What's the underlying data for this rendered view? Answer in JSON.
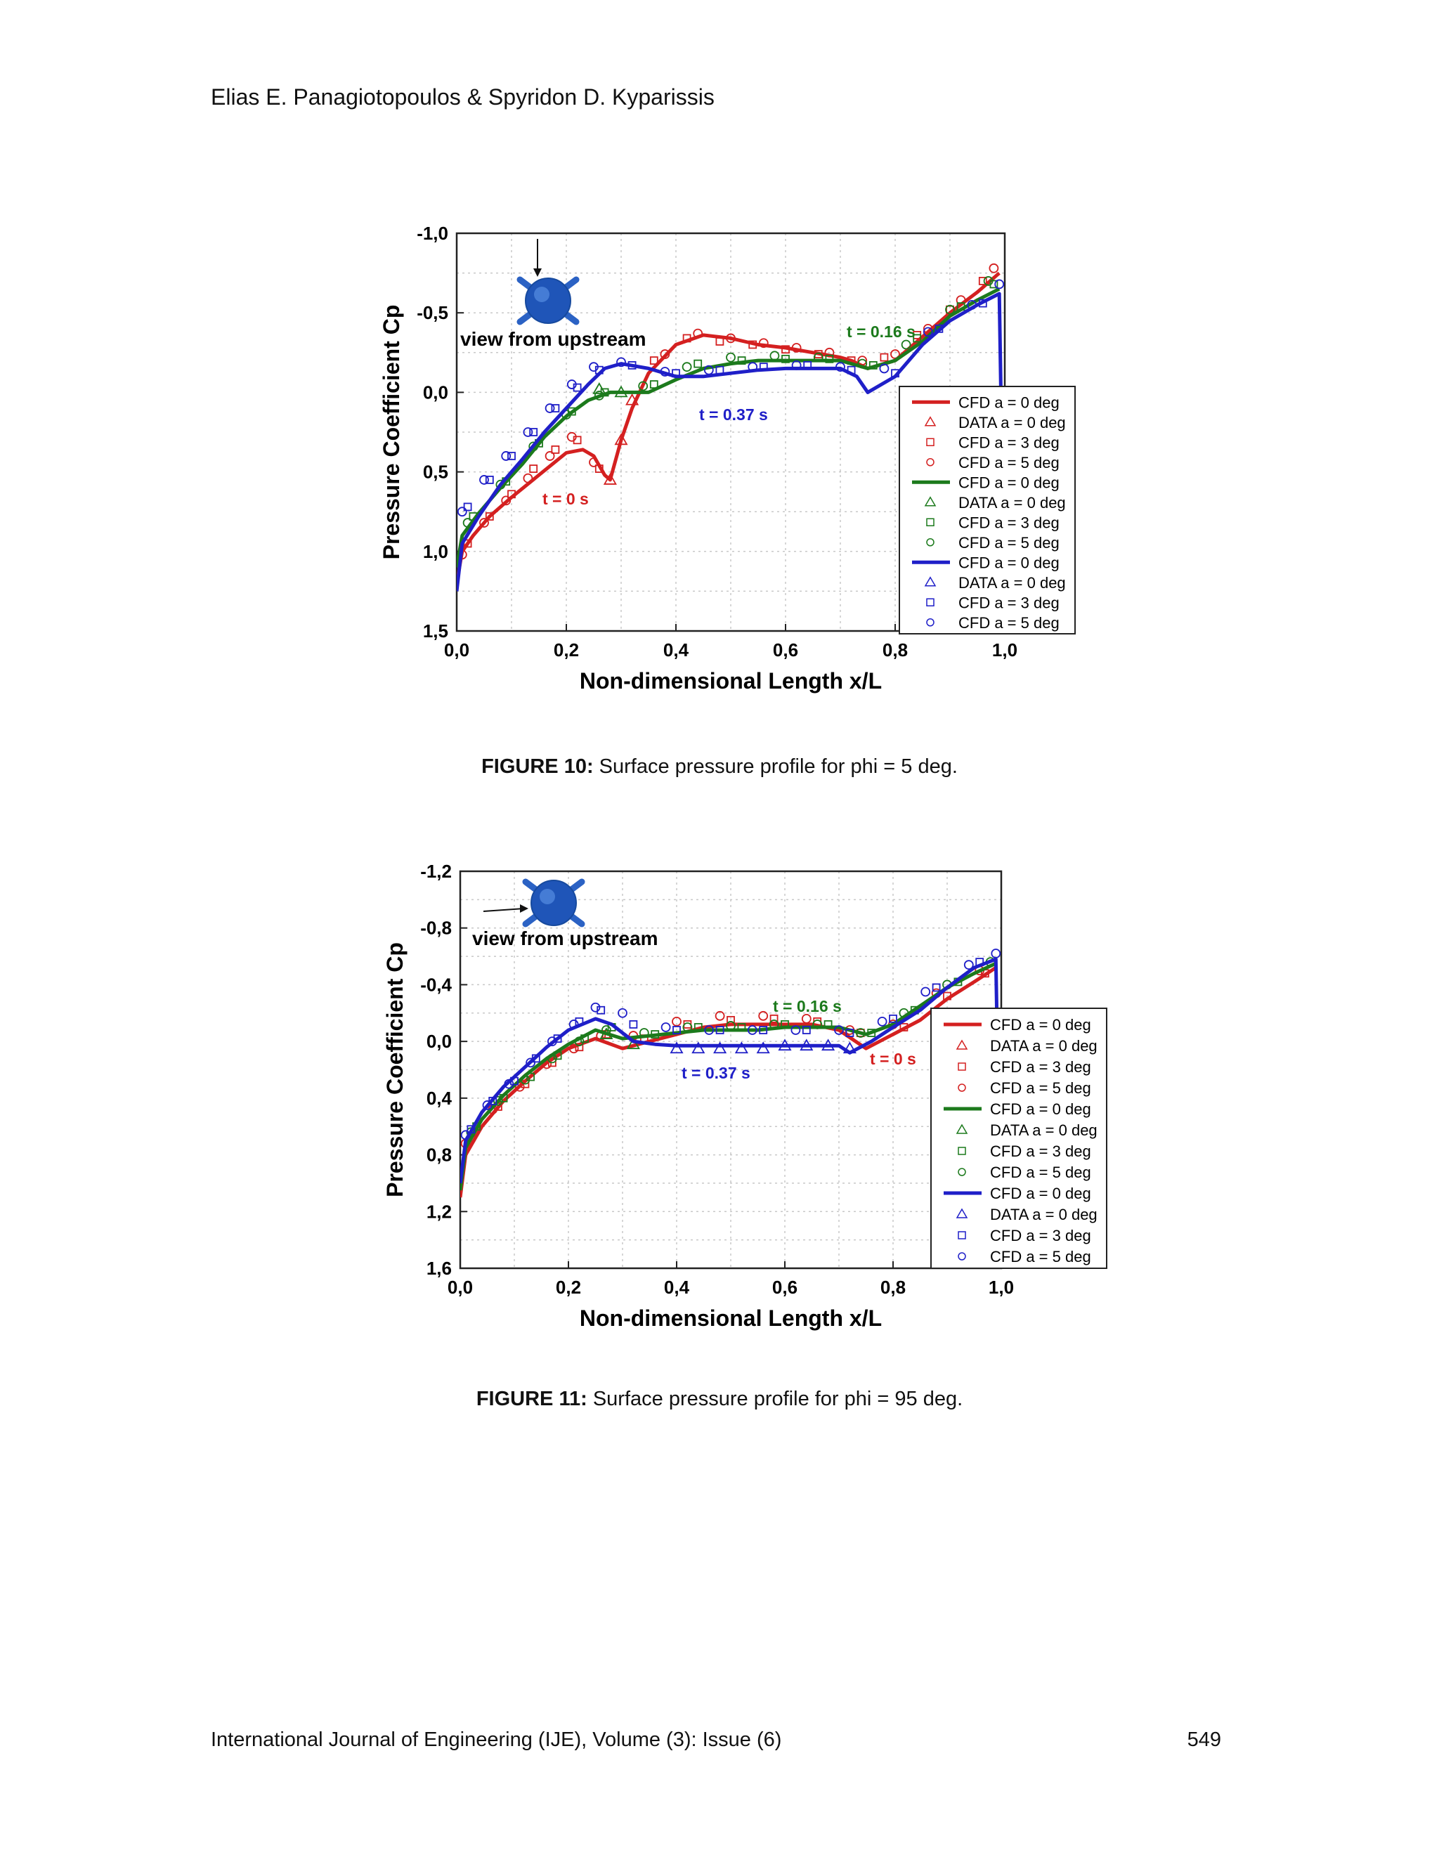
{
  "header": {
    "authors": "Elias E. Panagiotopoulos & Spyridon D. Kyparissis"
  },
  "footer": {
    "journal": "International Journal of Engineering (IJE), Volume (3): Issue (6)",
    "page_number": "549"
  },
  "colors": {
    "red": "#d42020",
    "green": "#1c7a1c",
    "blue": "#1f1fc8"
  },
  "figures": [
    {
      "caption_label": "FIGURE 10:",
      "caption_text": " Surface pressure profile for phi = 5 deg.",
      "inset_text": "view from upstream",
      "annotations": {
        "red": "t = 0 s",
        "green": "t = 0.16 s",
        "blue": "t = 0.37 s"
      }
    },
    {
      "caption_label": "FIGURE 11:",
      "caption_text": " Surface pressure profile for phi = 95 deg.",
      "inset_text": "view from upstream",
      "annotations": {
        "red": "t = 0 s",
        "green": "t = 0.16 s",
        "blue": "t = 0.37 s"
      }
    }
  ],
  "chart_data": [
    {
      "type": "line",
      "xlabel": "Non-dimensional Length x/L",
      "ylabel": "Pressure Coefficient Cp",
      "xlim": [
        0,
        1
      ],
      "ylim": [
        1.5,
        -1.1
      ],
      "y_inverted": true,
      "xticks": [
        "0,0",
        "0,2",
        "0,4",
        "0,6",
        "0,8",
        "1,0"
      ],
      "yticks": [
        "-1,0",
        "-0,5",
        "0,0",
        "0,5",
        "1,0",
        "1,5"
      ],
      "legend_position": "right",
      "series": [
        {
          "name": "CFD a = 0 deg",
          "color": "red",
          "marker": "line",
          "x": [
            0,
            0.01,
            0.03,
            0.06,
            0.1,
            0.15,
            0.2,
            0.23,
            0.25,
            0.27,
            0.28,
            0.3,
            0.32,
            0.35,
            0.4,
            0.45,
            0.5,
            0.55,
            0.6,
            0.65,
            0.7,
            0.72,
            0.75,
            0.8,
            0.85,
            0.9,
            0.95,
            0.99
          ],
          "y": [
            1.2,
            1.0,
            0.9,
            0.78,
            0.66,
            0.52,
            0.38,
            0.36,
            0.4,
            0.52,
            0.55,
            0.3,
            0.1,
            -0.12,
            -0.3,
            -0.36,
            -0.34,
            -0.3,
            -0.28,
            -0.25,
            -0.22,
            -0.2,
            -0.15,
            -0.2,
            -0.35,
            -0.5,
            -0.63,
            -0.75
          ]
        },
        {
          "name": "DATA a = 0 deg",
          "color": "red",
          "marker": "triangle",
          "x": [
            0.28,
            0.3,
            0.32
          ],
          "y": [
            0.55,
            0.3,
            0.05
          ]
        },
        {
          "name": "CFD a = 3 deg",
          "color": "red",
          "marker": "square",
          "x": [
            0.02,
            0.06,
            0.1,
            0.14,
            0.18,
            0.22,
            0.26,
            0.36,
            0.42,
            0.48,
            0.54,
            0.6,
            0.66,
            0.72,
            0.78,
            0.84,
            0.9,
            0.96
          ],
          "y": [
            0.95,
            0.78,
            0.64,
            0.48,
            0.36,
            0.3,
            0.48,
            -0.2,
            -0.34,
            -0.32,
            -0.3,
            -0.27,
            -0.24,
            -0.2,
            -0.22,
            -0.36,
            -0.52,
            -0.7
          ]
        },
        {
          "name": "CFD a = 5 deg",
          "color": "red",
          "marker": "circle",
          "x": [
            0.01,
            0.05,
            0.09,
            0.13,
            0.17,
            0.21,
            0.25,
            0.38,
            0.44,
            0.5,
            0.56,
            0.62,
            0.68,
            0.74,
            0.8,
            0.86,
            0.92,
            0.98
          ],
          "y": [
            1.02,
            0.82,
            0.68,
            0.54,
            0.4,
            0.28,
            0.44,
            -0.24,
            -0.37,
            -0.34,
            -0.31,
            -0.28,
            -0.25,
            -0.2,
            -0.24,
            -0.4,
            -0.58,
            -0.78
          ]
        },
        {
          "name": "CFD a = 0 deg",
          "color": "green",
          "marker": "line",
          "x": [
            0,
            0.01,
            0.04,
            0.08,
            0.12,
            0.16,
            0.2,
            0.24,
            0.28,
            0.3,
            0.35,
            0.4,
            0.45,
            0.5,
            0.55,
            0.6,
            0.65,
            0.7,
            0.75,
            0.8,
            0.85,
            0.9,
            0.95,
            0.99
          ],
          "y": [
            1.1,
            0.9,
            0.76,
            0.6,
            0.45,
            0.28,
            0.15,
            0.05,
            0.0,
            0.0,
            0.0,
            -0.08,
            -0.15,
            -0.18,
            -0.2,
            -0.2,
            -0.2,
            -0.2,
            -0.15,
            -0.2,
            -0.32,
            -0.48,
            -0.58,
            -0.65
          ]
        },
        {
          "name": "DATA a = 0 deg",
          "color": "green",
          "marker": "triangle",
          "x": [
            0.26,
            0.3
          ],
          "y": [
            -0.02,
            0.0
          ]
        },
        {
          "name": "CFD a = 3 deg",
          "color": "green",
          "marker": "square",
          "x": [
            0.03,
            0.09,
            0.15,
            0.21,
            0.27,
            0.36,
            0.44,
            0.52,
            0.6,
            0.68,
            0.76,
            0.84,
            0.92,
            0.98
          ],
          "y": [
            0.78,
            0.56,
            0.32,
            0.12,
            0.0,
            -0.05,
            -0.18,
            -0.2,
            -0.21,
            -0.21,
            -0.17,
            -0.34,
            -0.54,
            -0.68
          ]
        },
        {
          "name": "CFD a = 5 deg",
          "color": "green",
          "marker": "circle",
          "x": [
            0.02,
            0.08,
            0.14,
            0.2,
            0.26,
            0.34,
            0.42,
            0.5,
            0.58,
            0.66,
            0.74,
            0.82,
            0.9,
            0.97
          ],
          "y": [
            0.82,
            0.58,
            0.34,
            0.14,
            0.02,
            -0.04,
            -0.16,
            -0.22,
            -0.23,
            -0.22,
            -0.18,
            -0.3,
            -0.52,
            -0.7
          ]
        },
        {
          "name": "CFD a = 0 deg",
          "color": "blue",
          "marker": "line",
          "x": [
            0,
            0.01,
            0.04,
            0.08,
            0.12,
            0.16,
            0.2,
            0.24,
            0.27,
            0.3,
            0.35,
            0.4,
            0.45,
            0.5,
            0.55,
            0.6,
            0.65,
            0.7,
            0.73,
            0.75,
            0.8,
            0.85,
            0.9,
            0.95,
            0.99,
            1.0
          ],
          "y": [
            1.25,
            0.95,
            0.78,
            0.58,
            0.42,
            0.25,
            0.1,
            -0.05,
            -0.15,
            -0.18,
            -0.15,
            -0.1,
            -0.1,
            -0.12,
            -0.14,
            -0.15,
            -0.15,
            -0.15,
            -0.1,
            0.0,
            -0.1,
            -0.3,
            -0.45,
            -0.55,
            -0.62,
            1.5
          ]
        },
        {
          "name": "DATA a = 0 deg",
          "color": "blue",
          "marker": "triangle",
          "x": [],
          "y": []
        },
        {
          "name": "CFD a = 3 deg",
          "color": "blue",
          "marker": "square",
          "x": [
            0.02,
            0.06,
            0.1,
            0.14,
            0.18,
            0.22,
            0.26,
            0.32,
            0.4,
            0.48,
            0.56,
            0.64,
            0.72,
            0.8,
            0.88,
            0.96
          ],
          "y": [
            0.72,
            0.55,
            0.4,
            0.25,
            0.1,
            -0.03,
            -0.14,
            -0.17,
            -0.12,
            -0.14,
            -0.16,
            -0.17,
            -0.14,
            -0.12,
            -0.4,
            -0.56
          ]
        },
        {
          "name": "CFD a = 5 deg",
          "color": "blue",
          "marker": "circle",
          "x": [
            0.01,
            0.05,
            0.09,
            0.13,
            0.17,
            0.21,
            0.25,
            0.3,
            0.38,
            0.46,
            0.54,
            0.62,
            0.7,
            0.78,
            0.86,
            0.94,
            0.99
          ],
          "y": [
            0.75,
            0.55,
            0.4,
            0.25,
            0.1,
            -0.05,
            -0.16,
            -0.19,
            -0.13,
            -0.14,
            -0.16,
            -0.17,
            -0.16,
            -0.15,
            -0.38,
            -0.55,
            -0.68
          ]
        }
      ]
    },
    {
      "type": "line",
      "xlabel": "Non-dimensional Length x/L",
      "ylabel": "Pressure Coefficient Cp",
      "xlim": [
        0,
        1
      ],
      "ylim": [
        1.6,
        -1.2
      ],
      "y_inverted": true,
      "xticks": [
        "0,0",
        "0,2",
        "0,4",
        "0,6",
        "0,8",
        "1,0"
      ],
      "yticks": [
        "-1,2",
        "-0,8",
        "-0,4",
        "0,0",
        "0,4",
        "0,8",
        "1,2",
        "1,6"
      ],
      "legend_position": "right",
      "series": [
        {
          "name": "CFD a = 0 deg",
          "color": "red",
          "marker": "line",
          "x": [
            0,
            0.01,
            0.04,
            0.08,
            0.12,
            0.16,
            0.2,
            0.25,
            0.3,
            0.35,
            0.4,
            0.45,
            0.5,
            0.55,
            0.6,
            0.65,
            0.7,
            0.75,
            0.8,
            0.85,
            0.9,
            0.95,
            0.99
          ],
          "y": [
            1.1,
            0.8,
            0.6,
            0.42,
            0.28,
            0.15,
            0.05,
            -0.02,
            0.05,
            0.0,
            -0.05,
            -0.1,
            -0.12,
            -0.12,
            -0.12,
            -0.12,
            -0.08,
            0.05,
            -0.05,
            -0.15,
            -0.3,
            -0.42,
            -0.52
          ]
        },
        {
          "name": "DATA a = 0 deg",
          "color": "red",
          "marker": "triangle",
          "x": [],
          "y": []
        },
        {
          "name": "CFD a = 3 deg",
          "color": "red",
          "marker": "square",
          "x": [
            0.02,
            0.07,
            0.12,
            0.17,
            0.22,
            0.27,
            0.34,
            0.42,
            0.5,
            0.58,
            0.66,
            0.74,
            0.82,
            0.9,
            0.97
          ],
          "y": [
            0.68,
            0.46,
            0.3,
            0.15,
            0.04,
            -0.05,
            -0.02,
            -0.12,
            -0.15,
            -0.16,
            -0.14,
            -0.06,
            -0.1,
            -0.32,
            -0.48
          ]
        },
        {
          "name": "CFD a = 5 deg",
          "color": "red",
          "marker": "circle",
          "x": [
            0.01,
            0.06,
            0.11,
            0.16,
            0.21,
            0.26,
            0.32,
            0.4,
            0.48,
            0.56,
            0.64,
            0.72,
            0.8,
            0.88,
            0.96
          ],
          "y": [
            0.72,
            0.48,
            0.32,
            0.16,
            0.05,
            -0.04,
            -0.04,
            -0.14,
            -0.18,
            -0.18,
            -0.16,
            -0.08,
            -0.12,
            -0.34,
            -0.5
          ]
        },
        {
          "name": "CFD a = 0 deg",
          "color": "green",
          "marker": "line",
          "x": [
            0,
            0.01,
            0.04,
            0.08,
            0.12,
            0.16,
            0.2,
            0.25,
            0.3,
            0.35,
            0.4,
            0.45,
            0.5,
            0.55,
            0.6,
            0.65,
            0.7,
            0.75,
            0.8,
            0.85,
            0.9,
            0.95,
            0.99
          ],
          "y": [
            1.05,
            0.75,
            0.55,
            0.38,
            0.24,
            0.12,
            0.02,
            -0.08,
            -0.02,
            -0.04,
            -0.06,
            -0.08,
            -0.08,
            -0.08,
            -0.1,
            -0.1,
            -0.1,
            -0.05,
            -0.12,
            -0.25,
            -0.38,
            -0.48,
            -0.55
          ]
        },
        {
          "name": "DATA a = 0 deg",
          "color": "green",
          "marker": "triangle",
          "x": [
            0.27,
            0.32
          ],
          "y": [
            -0.05,
            0.02
          ]
        },
        {
          "name": "CFD a = 3 deg",
          "color": "green",
          "marker": "square",
          "x": [
            0.03,
            0.08,
            0.13,
            0.18,
            0.23,
            0.28,
            0.36,
            0.44,
            0.52,
            0.6,
            0.68,
            0.76,
            0.84,
            0.92
          ],
          "y": [
            0.6,
            0.4,
            0.25,
            0.1,
            -0.02,
            -0.1,
            -0.05,
            -0.1,
            -0.1,
            -0.12,
            -0.12,
            -0.06,
            -0.22,
            -0.42
          ]
        },
        {
          "name": "CFD a = 5 deg",
          "color": "green",
          "marker": "circle",
          "x": [
            0.02,
            0.07,
            0.12,
            0.17,
            0.22,
            0.27,
            0.34,
            0.42,
            0.5,
            0.58,
            0.66,
            0.74,
            0.82,
            0.9,
            0.98
          ],
          "y": [
            0.64,
            0.42,
            0.27,
            0.12,
            0.0,
            -0.08,
            -0.06,
            -0.1,
            -0.11,
            -0.12,
            -0.12,
            -0.06,
            -0.2,
            -0.4,
            -0.56
          ]
        },
        {
          "name": "CFD a = 0 deg",
          "color": "blue",
          "marker": "line",
          "x": [
            0,
            0.01,
            0.04,
            0.08,
            0.12,
            0.16,
            0.2,
            0.25,
            0.28,
            0.32,
            0.36,
            0.4,
            0.45,
            0.5,
            0.55,
            0.6,
            0.65,
            0.7,
            0.72,
            0.76,
            0.8,
            0.85,
            0.9,
            0.95,
            0.99,
            1.0
          ],
          "y": [
            1.0,
            0.7,
            0.5,
            0.32,
            0.18,
            0.04,
            -0.08,
            -0.16,
            -0.12,
            0.0,
            0.02,
            0.03,
            0.03,
            0.03,
            0.03,
            0.03,
            0.03,
            0.03,
            0.08,
            0.0,
            -0.1,
            -0.22,
            -0.38,
            -0.52,
            -0.58,
            1.6
          ]
        },
        {
          "name": "DATA a = 0 deg",
          "color": "blue",
          "marker": "triangle",
          "x": [
            0.4,
            0.44,
            0.48,
            0.52,
            0.56,
            0.6,
            0.64,
            0.68,
            0.72
          ],
          "y": [
            0.05,
            0.05,
            0.05,
            0.05,
            0.05,
            0.03,
            0.03,
            0.03,
            0.05
          ]
        },
        {
          "name": "CFD a = 3 deg",
          "color": "blue",
          "marker": "square",
          "x": [
            0.02,
            0.06,
            0.1,
            0.14,
            0.18,
            0.22,
            0.26,
            0.32,
            0.4,
            0.48,
            0.56,
            0.64,
            0.72,
            0.8,
            0.88,
            0.96
          ],
          "y": [
            0.62,
            0.42,
            0.28,
            0.12,
            -0.02,
            -0.14,
            -0.22,
            -0.12,
            -0.08,
            -0.08,
            -0.08,
            -0.08,
            -0.06,
            -0.16,
            -0.38,
            -0.56
          ]
        },
        {
          "name": "CFD a = 5 deg",
          "color": "blue",
          "marker": "circle",
          "x": [
            0.01,
            0.05,
            0.09,
            0.13,
            0.17,
            0.21,
            0.25,
            0.3,
            0.38,
            0.46,
            0.54,
            0.62,
            0.7,
            0.78,
            0.86,
            0.94,
            0.99
          ],
          "y": [
            0.66,
            0.45,
            0.3,
            0.15,
            0.0,
            -0.12,
            -0.24,
            -0.2,
            -0.1,
            -0.08,
            -0.08,
            -0.08,
            -0.08,
            -0.14,
            -0.35,
            -0.54,
            -0.62
          ]
        }
      ]
    }
  ]
}
